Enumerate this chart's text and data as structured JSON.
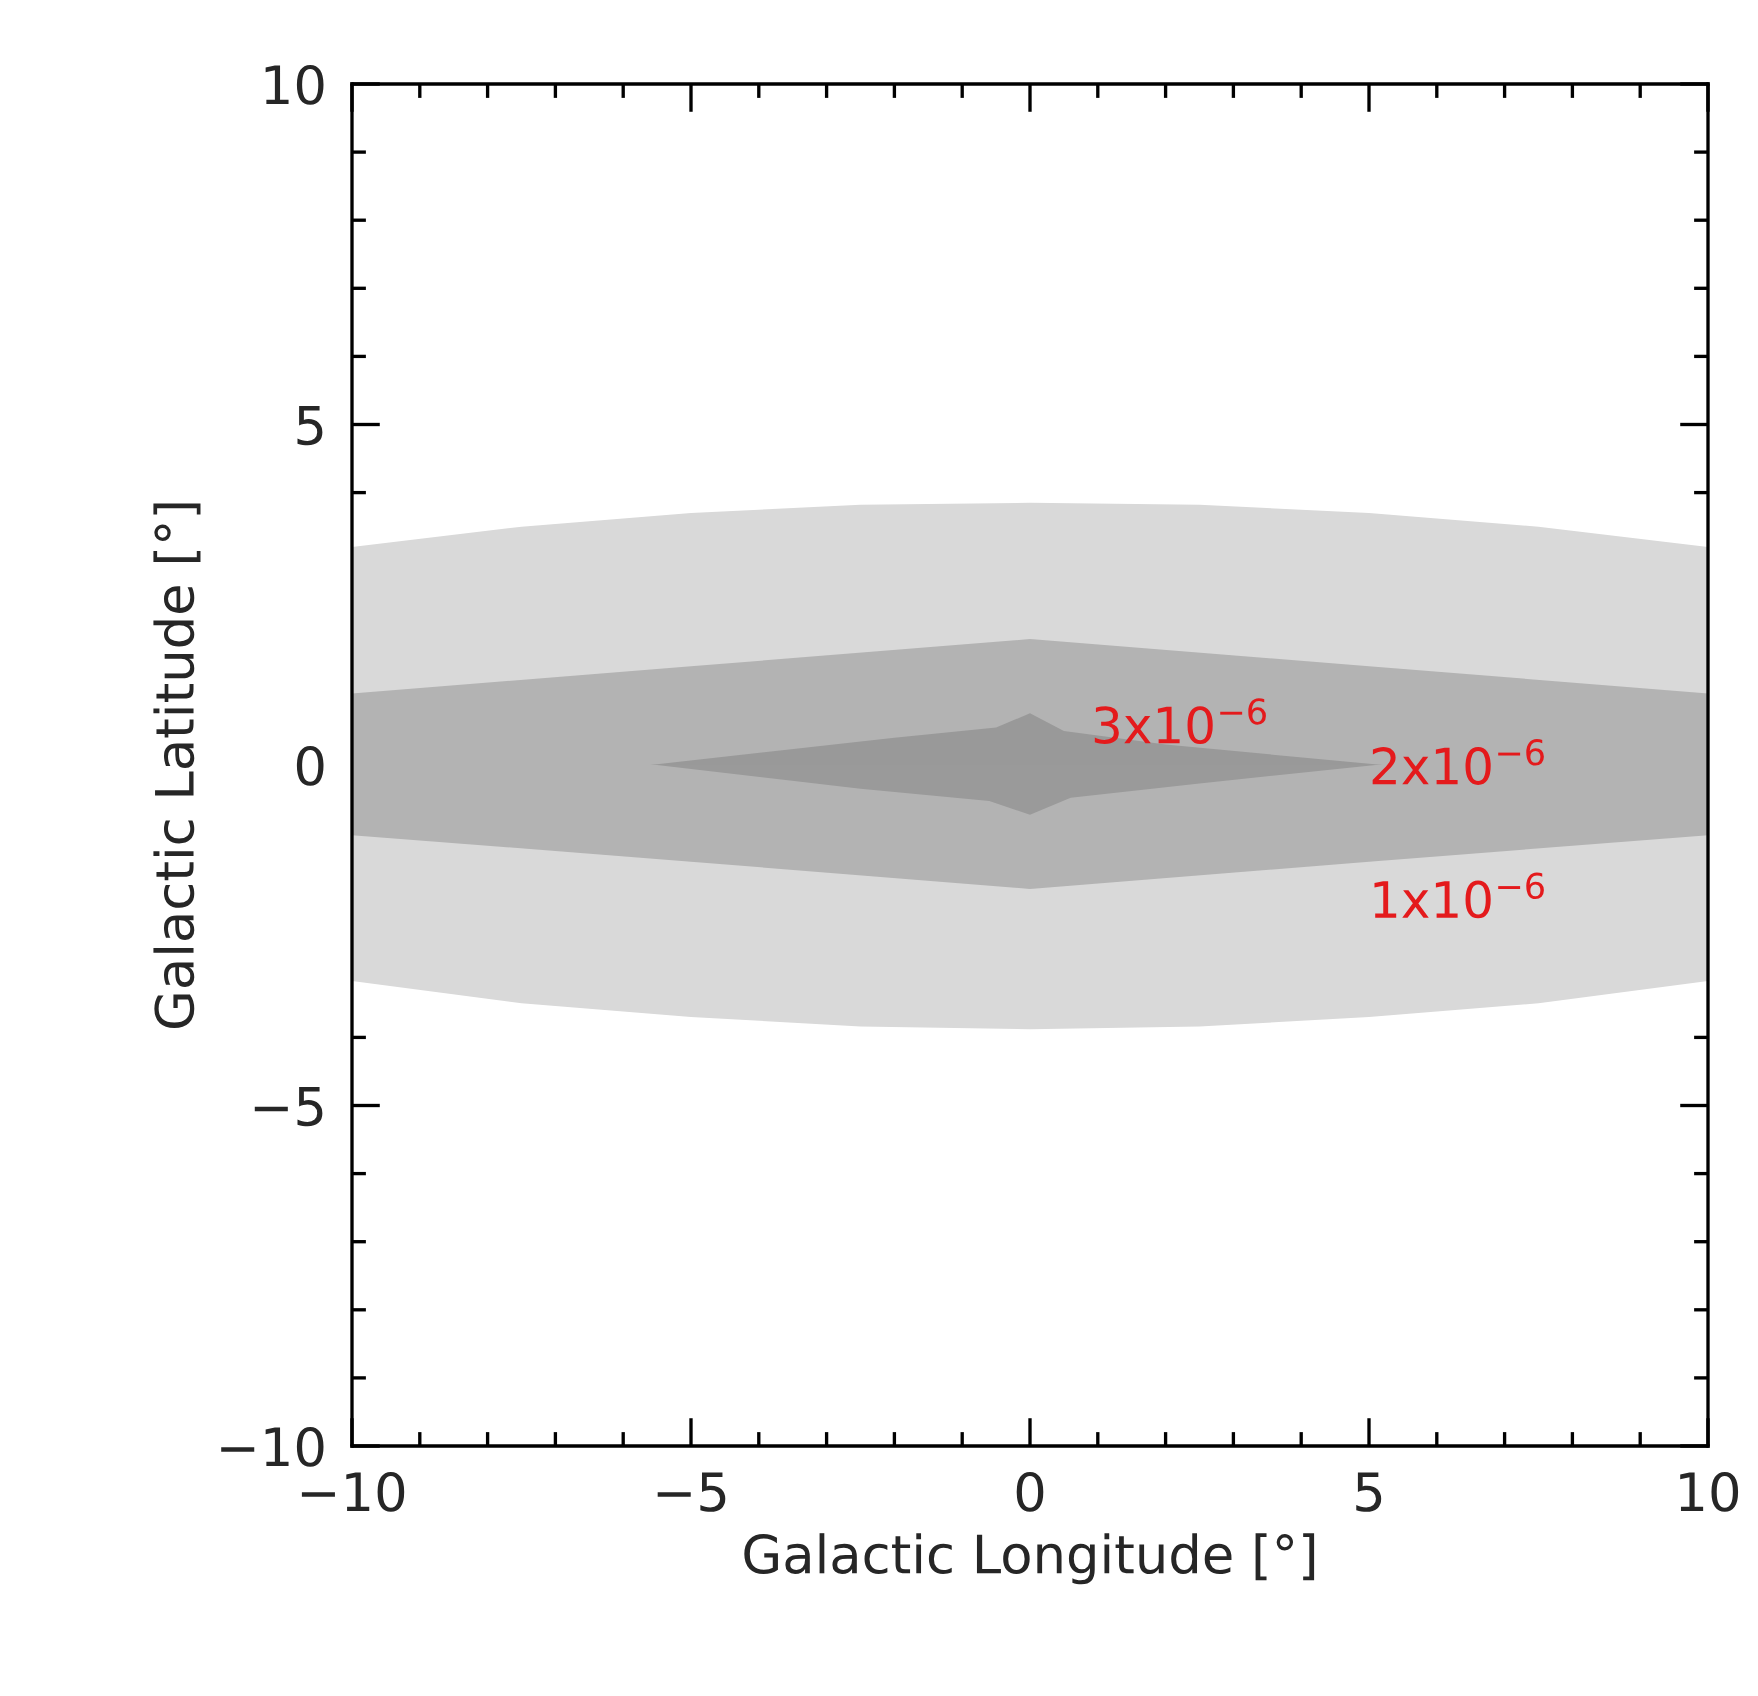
{
  "chart_data": {
    "type": "area",
    "xlabel": "Galactic Longitude [°]",
    "ylabel": "Galactic Latitude [°]",
    "xlim": [
      -10,
      10
    ],
    "ylim": [
      -10,
      10
    ],
    "xticks": [
      {
        "value": -10,
        "label": "−10"
      },
      {
        "value": -5,
        "label": "−5"
      },
      0,
      5,
      10
    ],
    "yticks": [
      {
        "value": -10,
        "label": "−10"
      },
      {
        "value": -5,
        "label": "−5"
      },
      0,
      5,
      10
    ],
    "series": [
      {
        "color": "#d9d9d9",
        "x": [
          -10,
          -7.5,
          -5,
          -2.5,
          0,
          2.5,
          5,
          7.5,
          10
        ],
        "values": [
          3.2,
          3.5,
          3.7,
          3.82,
          3.85,
          3.82,
          3.7,
          3.5,
          3.2
        ]
      },
      {
        "color": "#d9d9d9",
        "x": [
          -10,
          -7.5,
          -5,
          -2.5,
          0,
          2.5,
          5,
          7.5,
          10
        ],
        "values": [
          -3.17,
          -3.5,
          -3.7,
          -3.84,
          -3.88,
          -3.84,
          -3.7,
          -3.5,
          -3.17
        ]
      },
      {
        "color": "#b3b3b3",
        "x": [
          -10,
          -5,
          0,
          5,
          10
        ],
        "values": [
          1.05,
          1.45,
          1.85,
          1.45,
          1.05
        ]
      },
      {
        "color": "#b3b3b3",
        "x": [
          -10,
          -5,
          0,
          5,
          10
        ],
        "values": [
          -1.03,
          -1.42,
          -1.82,
          -1.42,
          -1.03
        ]
      },
      {
        "color": "#999999",
        "x": [
          -5.6,
          -2,
          -0.5,
          0,
          0.5,
          2,
          5.2
        ],
        "values": [
          0,
          0.4,
          0.55,
          0.76,
          0.5,
          0.3,
          0
        ]
      },
      {
        "color": "#9a9a9a",
        "x": [
          -5.5,
          -2.5,
          -0.6,
          0,
          0.6,
          2.5,
          5.1
        ],
        "values": [
          0,
          -0.35,
          -0.53,
          -0.73,
          -0.48,
          -0.27,
          0
        ]
      }
    ],
    "annotations": [
      "3x10$^{−6}$",
      "2x10$^{−6}$",
      "1x10$^{−6}$"
    ]
  }
}
